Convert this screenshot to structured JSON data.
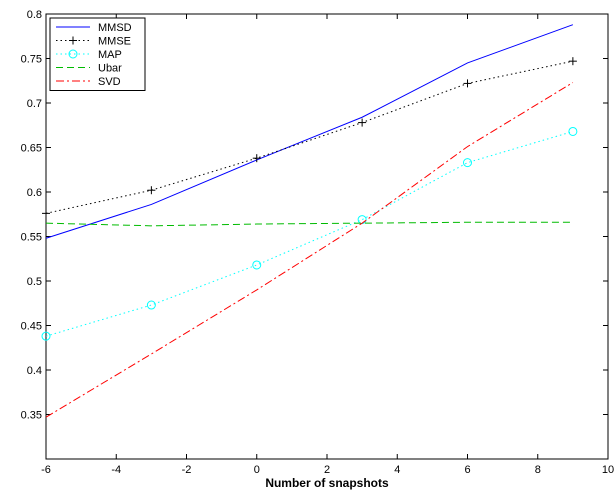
{
  "chart_data": {
    "type": "line",
    "title": "",
    "xlabel": "Number of snapshots",
    "ylabel": "",
    "xlim": [
      -6,
      10
    ],
    "ylim": [
      0.3,
      0.8
    ],
    "xticks": [
      -6,
      -4,
      -2,
      0,
      2,
      4,
      6,
      8,
      10
    ],
    "yticks": [
      0.35,
      0.4,
      0.45,
      0.5,
      0.55,
      0.6,
      0.65,
      0.7,
      0.75,
      0.8
    ],
    "grid": false,
    "legend_position": "top-left",
    "series": [
      {
        "name": "MMSD",
        "color": "#0000ff",
        "line_style": "solid",
        "marker": "none",
        "x": [
          -6,
          -3,
          0,
          3,
          6,
          9
        ],
        "values": [
          0.548,
          0.586,
          0.636,
          0.684,
          0.745,
          0.788
        ]
      },
      {
        "name": "MMSE",
        "color": "#000000",
        "line_style": "dotted",
        "marker": "plus",
        "x": [
          -6,
          -3,
          0,
          3,
          6,
          9
        ],
        "values": [
          0.576,
          0.602,
          0.638,
          0.678,
          0.722,
          0.747
        ]
      },
      {
        "name": "MAP",
        "color": "#00ffff",
        "line_style": "dotted",
        "marker": "circle",
        "x": [
          -6,
          -3,
          0,
          3,
          6,
          9
        ],
        "values": [
          0.438,
          0.473,
          0.518,
          0.569,
          0.633,
          0.668
        ]
      },
      {
        "name": "Ubar",
        "color": "#00bb00",
        "line_style": "dashed",
        "marker": "none",
        "x": [
          -6,
          -3,
          0,
          3,
          6,
          9
        ],
        "values": [
          0.565,
          0.562,
          0.564,
          0.565,
          0.566,
          0.566
        ]
      },
      {
        "name": "SVD",
        "color": "#ff0000",
        "line_style": "dashdot",
        "marker": "none",
        "x": [
          -6,
          -3,
          0,
          3,
          6,
          9
        ],
        "values": [
          0.347,
          0.418,
          0.49,
          0.565,
          0.651,
          0.723
        ]
      }
    ]
  }
}
